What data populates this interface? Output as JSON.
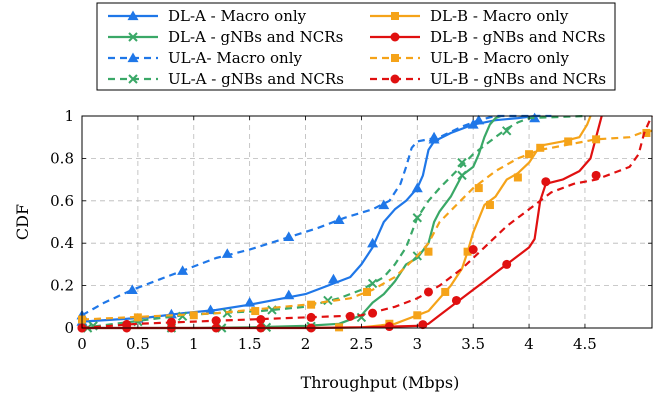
{
  "chart_data": {
    "type": "line",
    "xlabel": "Throughput (Mbps)",
    "ylabel": "CDF",
    "xlim": [
      0,
      5.1
    ],
    "ylim": [
      0,
      1
    ],
    "grid": true,
    "legend_position": "top-center",
    "x_ticks": [
      0,
      0.5,
      1,
      1.5,
      2,
      2.5,
      3,
      3.5,
      4,
      4.5
    ],
    "x_tick_labels": [
      "0",
      "0.5",
      "1",
      "1.5",
      "2",
      "2.5",
      "3",
      "3.5",
      "4",
      "4.5"
    ],
    "y_ticks": [
      0,
      0.2,
      0.4,
      0.6,
      0.8,
      1
    ],
    "y_tick_labels": [
      "0",
      "0.2",
      "0.4",
      "0.6",
      "0.8",
      "1"
    ],
    "series": [
      {
        "name": "DL-A - Macro only",
        "color": "#1f77e8",
        "dash": "solid",
        "marker": "triangle",
        "points": [
          [
            0,
            0.03
          ],
          [
            0.3,
            0.04
          ],
          [
            0.6,
            0.05
          ],
          [
            0.9,
            0.07
          ],
          [
            1.2,
            0.085
          ],
          [
            1.5,
            0.11
          ],
          [
            1.8,
            0.14
          ],
          [
            2.0,
            0.16
          ],
          [
            2.2,
            0.2
          ],
          [
            2.4,
            0.24
          ],
          [
            2.5,
            0.3
          ],
          [
            2.6,
            0.38
          ],
          [
            2.7,
            0.5
          ],
          [
            2.8,
            0.56
          ],
          [
            2.9,
            0.6
          ],
          [
            3.0,
            0.66
          ],
          [
            3.05,
            0.72
          ],
          [
            3.1,
            0.84
          ],
          [
            3.15,
            0.88
          ],
          [
            3.3,
            0.92
          ],
          [
            3.5,
            0.96
          ],
          [
            3.6,
            0.97
          ],
          [
            3.7,
            0.98
          ],
          [
            3.9,
            0.99
          ],
          [
            4.05,
            1.0
          ],
          [
            4.1,
            1.0
          ]
        ],
        "markers": [
          [
            0,
            0.03
          ],
          [
            0.5,
            0.045
          ],
          [
            0.8,
            0.065
          ],
          [
            1.15,
            0.085
          ],
          [
            1.5,
            0.12
          ],
          [
            1.85,
            0.155
          ],
          [
            2.25,
            0.23
          ],
          [
            2.6,
            0.4
          ],
          [
            3.0,
            0.66
          ],
          [
            3.15,
            0.89
          ],
          [
            3.5,
            0.96
          ],
          [
            4.05,
            0.99
          ]
        ]
      },
      {
        "name": "DL-A - gNBs and NCRs",
        "color": "#3aa867",
        "dash": "solid",
        "marker": "x",
        "points": [
          [
            0,
            0.0
          ],
          [
            0.5,
            0.0
          ],
          [
            1.0,
            0.0
          ],
          [
            1.5,
            0.003
          ],
          [
            2.0,
            0.01
          ],
          [
            2.3,
            0.02
          ],
          [
            2.5,
            0.06
          ],
          [
            2.6,
            0.12
          ],
          [
            2.7,
            0.16
          ],
          [
            2.8,
            0.22
          ],
          [
            2.9,
            0.3
          ],
          [
            3.0,
            0.33
          ],
          [
            3.1,
            0.4
          ],
          [
            3.15,
            0.5
          ],
          [
            3.2,
            0.55
          ],
          [
            3.3,
            0.62
          ],
          [
            3.4,
            0.72
          ],
          [
            3.5,
            0.76
          ],
          [
            3.55,
            0.82
          ],
          [
            3.6,
            0.9
          ],
          [
            3.65,
            0.96
          ],
          [
            3.7,
            0.99
          ],
          [
            3.75,
            1.0
          ]
        ],
        "markers": [
          [
            0.05,
            0.0
          ],
          [
            0.8,
            0.0
          ],
          [
            1.25,
            0.0
          ],
          [
            1.65,
            0.003
          ],
          [
            2.05,
            0.008
          ],
          [
            2.5,
            0.05
          ],
          [
            3.0,
            0.34
          ],
          [
            3.4,
            0.72
          ]
        ]
      },
      {
        "name": "UL-A- Macro only",
        "color": "#1f77e8",
        "dash": "dashed",
        "marker": "triangle",
        "points": [
          [
            0,
            0.06
          ],
          [
            0.2,
            0.12
          ],
          [
            0.45,
            0.18
          ],
          [
            0.7,
            0.23
          ],
          [
            0.95,
            0.28
          ],
          [
            1.2,
            0.33
          ],
          [
            1.5,
            0.37
          ],
          [
            1.8,
            0.42
          ],
          [
            2.1,
            0.47
          ],
          [
            2.35,
            0.52
          ],
          [
            2.6,
            0.56
          ],
          [
            2.75,
            0.6
          ],
          [
            2.85,
            0.68
          ],
          [
            2.9,
            0.76
          ],
          [
            2.95,
            0.85
          ],
          [
            3.0,
            0.88
          ],
          [
            3.2,
            0.9
          ],
          [
            3.4,
            0.95
          ],
          [
            3.55,
            0.98
          ],
          [
            3.7,
            1.0
          ],
          [
            4.2,
            1.0
          ]
        ],
        "markers": [
          [
            0,
            0.06
          ],
          [
            0.45,
            0.18
          ],
          [
            0.9,
            0.27
          ],
          [
            1.3,
            0.35
          ],
          [
            1.85,
            0.43
          ],
          [
            2.3,
            0.51
          ],
          [
            2.7,
            0.58
          ],
          [
            3.15,
            0.9
          ],
          [
            3.55,
            0.98
          ]
        ]
      },
      {
        "name": "UL-A - gNBs and NCRs",
        "color": "#3aa867",
        "dash": "dashed",
        "marker": "x",
        "points": [
          [
            0,
            0.0
          ],
          [
            0.3,
            0.02
          ],
          [
            0.6,
            0.04
          ],
          [
            0.9,
            0.06
          ],
          [
            1.2,
            0.07
          ],
          [
            1.6,
            0.08
          ],
          [
            2.0,
            0.1
          ],
          [
            2.3,
            0.14
          ],
          [
            2.5,
            0.18
          ],
          [
            2.7,
            0.24
          ],
          [
            2.8,
            0.3
          ],
          [
            2.9,
            0.38
          ],
          [
            3.0,
            0.52
          ],
          [
            3.1,
            0.6
          ],
          [
            3.2,
            0.66
          ],
          [
            3.35,
            0.74
          ],
          [
            3.5,
            0.82
          ],
          [
            3.65,
            0.88
          ],
          [
            3.8,
            0.94
          ],
          [
            3.9,
            0.97
          ],
          [
            4.0,
            0.99
          ],
          [
            4.5,
            1.0
          ]
        ],
        "markers": [
          [
            0.1,
            0.01
          ],
          [
            0.5,
            0.03
          ],
          [
            0.9,
            0.055
          ],
          [
            1.3,
            0.07
          ],
          [
            1.7,
            0.085
          ],
          [
            2.2,
            0.13
          ],
          [
            2.6,
            0.21
          ],
          [
            3.0,
            0.52
          ],
          [
            3.4,
            0.78
          ],
          [
            3.8,
            0.93
          ]
        ]
      },
      {
        "name": "DL-B - Macro only",
        "color": "#f5a319",
        "dash": "solid",
        "marker": "square",
        "points": [
          [
            2.0,
            0.0
          ],
          [
            2.5,
            0.003
          ],
          [
            2.8,
            0.02
          ],
          [
            2.9,
            0.04
          ],
          [
            3.0,
            0.06
          ],
          [
            3.1,
            0.08
          ],
          [
            3.2,
            0.14
          ],
          [
            3.3,
            0.2
          ],
          [
            3.4,
            0.28
          ],
          [
            3.45,
            0.36
          ],
          [
            3.5,
            0.45
          ],
          [
            3.6,
            0.58
          ],
          [
            3.7,
            0.62
          ],
          [
            3.8,
            0.7
          ],
          [
            3.9,
            0.73
          ],
          [
            4.0,
            0.78
          ],
          [
            4.1,
            0.86
          ],
          [
            4.3,
            0.88
          ],
          [
            4.45,
            0.9
          ],
          [
            4.52,
            0.96
          ],
          [
            4.55,
            1.0
          ]
        ],
        "markers": [
          [
            2.3,
            0.003
          ],
          [
            2.75,
            0.02
          ],
          [
            3.0,
            0.06
          ],
          [
            3.25,
            0.17
          ],
          [
            3.45,
            0.36
          ],
          [
            3.65,
            0.58
          ],
          [
            3.9,
            0.71
          ],
          [
            4.1,
            0.85
          ],
          [
            4.35,
            0.88
          ]
        ]
      },
      {
        "name": "DL-B - gNBs and NCRs",
        "color": "#e01010",
        "dash": "solid",
        "marker": "circle",
        "points": [
          [
            0,
            0.0
          ],
          [
            1.0,
            0.0
          ],
          [
            2.0,
            0.0
          ],
          [
            2.5,
            0.003
          ],
          [
            3.0,
            0.01
          ],
          [
            3.1,
            0.02
          ],
          [
            3.2,
            0.06
          ],
          [
            3.3,
            0.1
          ],
          [
            3.4,
            0.14
          ],
          [
            3.5,
            0.18
          ],
          [
            3.6,
            0.22
          ],
          [
            3.7,
            0.26
          ],
          [
            3.8,
            0.3
          ],
          [
            3.9,
            0.34
          ],
          [
            4.0,
            0.38
          ],
          [
            4.05,
            0.42
          ],
          [
            4.1,
            0.6
          ],
          [
            4.15,
            0.68
          ],
          [
            4.3,
            0.7
          ],
          [
            4.45,
            0.74
          ],
          [
            4.55,
            0.8
          ],
          [
            4.6,
            0.9
          ],
          [
            4.65,
            1.0
          ]
        ],
        "markers": [
          [
            0,
            0.0
          ],
          [
            0.4,
            0.0
          ],
          [
            0.8,
            0.0
          ],
          [
            1.2,
            0.0
          ],
          [
            1.6,
            0.0
          ],
          [
            2.05,
            0.0
          ],
          [
            2.75,
            0.007
          ],
          [
            3.05,
            0.016
          ],
          [
            3.35,
            0.13
          ],
          [
            3.8,
            0.3
          ],
          [
            4.15,
            0.69
          ]
        ]
      },
      {
        "name": "UL-B - Macro only",
        "color": "#f5a319",
        "dash": "dashed",
        "marker": "square",
        "points": [
          [
            0,
            0.04
          ],
          [
            0.4,
            0.05
          ],
          [
            0.8,
            0.06
          ],
          [
            1.2,
            0.07
          ],
          [
            1.6,
            0.09
          ],
          [
            2.0,
            0.11
          ],
          [
            2.4,
            0.14
          ],
          [
            2.6,
            0.18
          ],
          [
            2.8,
            0.24
          ],
          [
            3.0,
            0.34
          ],
          [
            3.1,
            0.4
          ],
          [
            3.2,
            0.5
          ],
          [
            3.35,
            0.58
          ],
          [
            3.5,
            0.66
          ],
          [
            3.7,
            0.74
          ],
          [
            3.9,
            0.8
          ],
          [
            4.1,
            0.84
          ],
          [
            4.3,
            0.86
          ],
          [
            4.6,
            0.89
          ],
          [
            4.9,
            0.9
          ],
          [
            5.0,
            0.92
          ],
          [
            5.1,
            0.93
          ]
        ],
        "markers": [
          [
            0,
            0.04
          ],
          [
            0.5,
            0.05
          ],
          [
            1.0,
            0.06
          ],
          [
            1.55,
            0.08
          ],
          [
            2.05,
            0.11
          ],
          [
            2.55,
            0.17
          ],
          [
            3.1,
            0.36
          ],
          [
            3.55,
            0.66
          ],
          [
            4.0,
            0.82
          ],
          [
            4.6,
            0.89
          ],
          [
            5.05,
            0.92
          ]
        ]
      },
      {
        "name": "UL-B - gNBs and NCRs",
        "color": "#e01010",
        "dash": "dashed",
        "marker": "circle",
        "points": [
          [
            0,
            0.0
          ],
          [
            0.5,
            0.02
          ],
          [
            1.0,
            0.03
          ],
          [
            1.5,
            0.04
          ],
          [
            2.0,
            0.05
          ],
          [
            2.5,
            0.06
          ],
          [
            2.8,
            0.1
          ],
          [
            3.0,
            0.14
          ],
          [
            3.2,
            0.2
          ],
          [
            3.4,
            0.28
          ],
          [
            3.6,
            0.38
          ],
          [
            3.8,
            0.48
          ],
          [
            4.0,
            0.56
          ],
          [
            4.2,
            0.64
          ],
          [
            4.4,
            0.68
          ],
          [
            4.6,
            0.7
          ],
          [
            4.8,
            0.74
          ],
          [
            4.9,
            0.76
          ],
          [
            4.98,
            0.82
          ],
          [
            5.03,
            0.92
          ],
          [
            5.08,
            0.98
          ],
          [
            5.1,
            1.0
          ]
        ],
        "markers": [
          [
            0,
            0.0
          ],
          [
            0.4,
            0.017
          ],
          [
            0.8,
            0.028
          ],
          [
            1.2,
            0.035
          ],
          [
            1.6,
            0.04
          ],
          [
            2.05,
            0.05
          ],
          [
            2.4,
            0.055
          ],
          [
            2.6,
            0.07
          ],
          [
            3.1,
            0.17
          ],
          [
            3.5,
            0.37
          ],
          [
            4.6,
            0.72
          ]
        ]
      }
    ]
  }
}
